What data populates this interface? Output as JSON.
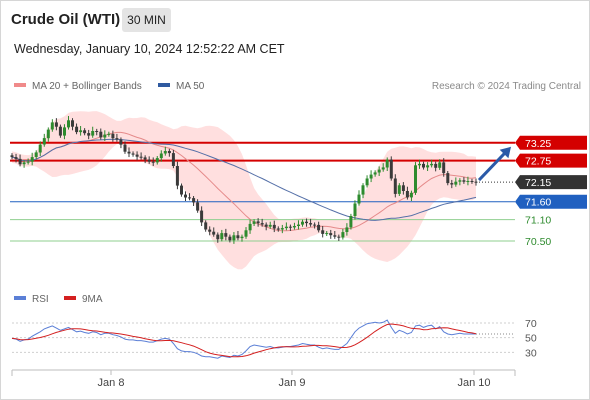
{
  "header": {
    "title": "Crude Oil (WTI)",
    "timeframe": "30 MIN",
    "datetime": "Wednesday, January 10, 2024 12:52:22 AM CET"
  },
  "legend": {
    "ma20_label": "MA 20 + Bollinger Bands",
    "ma50_label": "MA 50",
    "credit": "Research © 2024 Trading Central"
  },
  "rsi_legend": {
    "rsi_label": "RSI",
    "ma_label": "9MA"
  },
  "colors": {
    "up_candle": "#2e8b2e",
    "down_candle": "#3a3a3a",
    "bollinger_fill": "#ffd9d9",
    "ma20": "#e58a8a",
    "ma50": "#5570a8",
    "resistance": "#d40000",
    "pivot": "#2060c0",
    "support": "#8fcf8f",
    "arrow": "#2b5aa8",
    "rsi": "#5b7fd6",
    "rsi_ma": "#d42020"
  },
  "chart_data": {
    "type": "candlestick",
    "ylim": [
      69.8,
      74.0
    ],
    "x_labels": [
      "Jan 8",
      "Jan 9",
      "Jan 10"
    ],
    "levels": [
      {
        "label": "73.25",
        "value": 73.25,
        "kind": "resistance"
      },
      {
        "label": "72.75",
        "value": 72.75,
        "kind": "resistance"
      },
      {
        "label": "72.15",
        "value": 72.15,
        "kind": "current"
      },
      {
        "label": "71.60",
        "value": 71.6,
        "kind": "pivot"
      },
      {
        "label": "71.10",
        "value": 71.1,
        "kind": "support"
      },
      {
        "label": "70.50",
        "value": 70.5,
        "kind": "support"
      }
    ],
    "close": [
      72.85,
      72.8,
      72.65,
      72.7,
      72.72,
      72.85,
      72.98,
      73.2,
      73.38,
      73.62,
      73.82,
      73.7,
      73.45,
      73.68,
      73.88,
      73.7,
      73.55,
      73.6,
      73.52,
      73.45,
      73.58,
      73.56,
      73.4,
      73.48,
      73.5,
      73.38,
      73.34,
      73.2,
      73.0,
      72.95,
      72.92,
      72.86,
      72.84,
      72.78,
      72.72,
      72.7,
      72.82,
      72.95,
      73.02,
      72.96,
      72.6,
      72.05,
      71.8,
      71.72,
      71.7,
      71.58,
      71.35,
      71.02,
      70.82,
      70.76,
      70.68,
      70.55,
      70.72,
      70.62,
      70.52,
      70.66,
      70.58,
      70.62,
      70.8,
      70.98,
      71.05,
      71.0,
      70.96,
      70.9,
      70.95,
      70.85,
      70.82,
      70.86,
      70.9,
      70.88,
      70.92,
      70.96,
      71.04,
      71.0,
      70.96,
      70.95,
      70.8,
      70.7,
      70.72,
      70.66,
      70.62,
      70.6,
      70.75,
      70.88,
      71.2,
      71.55,
      71.8,
      72.06,
      72.25,
      72.36,
      72.42,
      72.5,
      72.56,
      72.78,
      72.25,
      71.82,
      72.06,
      71.9,
      71.72,
      71.85,
      72.62,
      72.66,
      72.56,
      72.62,
      72.66,
      72.55,
      72.7,
      72.4,
      72.12,
      72.08,
      72.16,
      72.2,
      72.16,
      72.18,
      72.16,
      72.15
    ],
    "rsi": [
      49,
      48,
      45,
      47,
      48,
      52,
      55,
      58,
      62,
      64,
      66,
      63,
      60,
      62,
      64,
      61,
      58,
      59,
      57,
      56,
      58,
      57,
      54,
      56,
      56,
      54,
      53,
      51,
      48,
      47,
      47,
      46,
      46,
      45,
      44,
      44,
      46,
      48,
      49,
      48,
      42,
      35,
      32,
      31,
      31,
      30,
      28,
      25,
      24,
      24,
      23,
      22,
      25,
      24,
      23,
      26,
      25,
      27,
      32,
      38,
      40,
      39,
      38,
      37,
      38,
      36,
      36,
      37,
      38,
      38,
      39,
      40,
      42,
      41,
      40,
      40,
      37,
      35,
      36,
      35,
      34,
      34,
      38,
      42,
      50,
      58,
      63,
      66,
      69,
      70,
      71,
      70,
      71,
      74,
      64,
      56,
      60,
      58,
      55,
      57,
      66,
      67,
      64,
      66,
      67,
      62,
      65,
      58,
      55,
      54,
      55,
      56,
      55,
      55,
      55,
      55
    ],
    "rsi_levels": [
      70,
      50,
      30
    ],
    "rsi_ylim": [
      10,
      85
    ]
  }
}
